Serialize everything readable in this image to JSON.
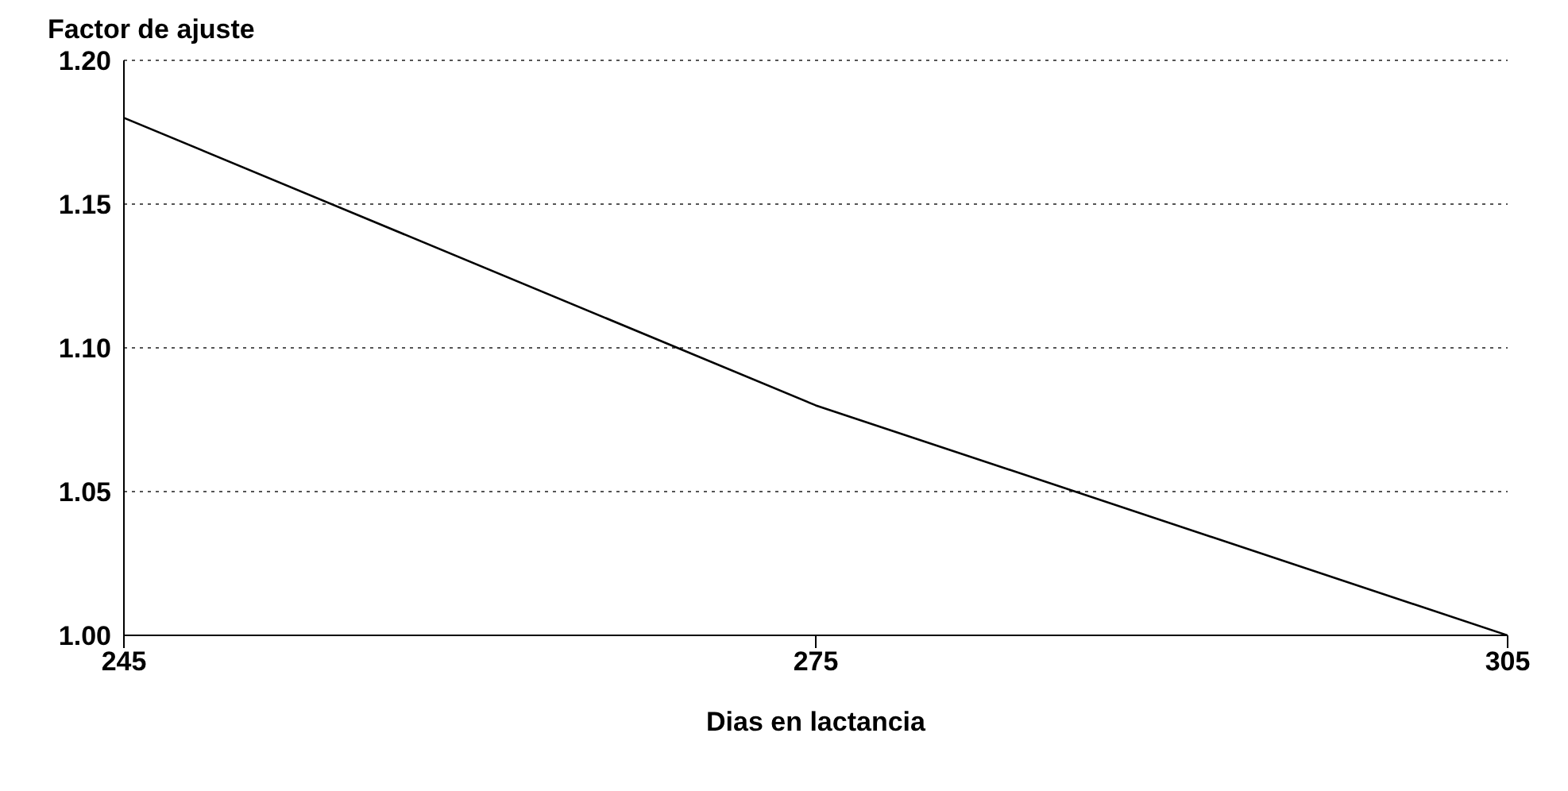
{
  "chart_data": {
    "type": "line",
    "xlabel": "Dias en lactancia",
    "ylabel": "Factor de ajuste",
    "x": [
      245,
      275,
      305
    ],
    "series": [
      {
        "color": "#000000",
        "values": [
          1.18,
          1.08,
          1.0
        ]
      }
    ],
    "xlim": [
      245,
      305
    ],
    "xticks": [
      245,
      275,
      305
    ],
    "ylim": [
      1.0,
      1.2
    ],
    "yticks": [
      {
        "value": 1.0,
        "label": "1.00"
      },
      {
        "value": 1.05,
        "label": "1.05"
      },
      {
        "value": 1.1,
        "label": "1.10"
      },
      {
        "value": 1.15,
        "label": "1.15"
      },
      {
        "value": 1.2,
        "label": "1.20"
      }
    ],
    "grid": "y",
    "marker": "none",
    "line_style": "solid"
  }
}
